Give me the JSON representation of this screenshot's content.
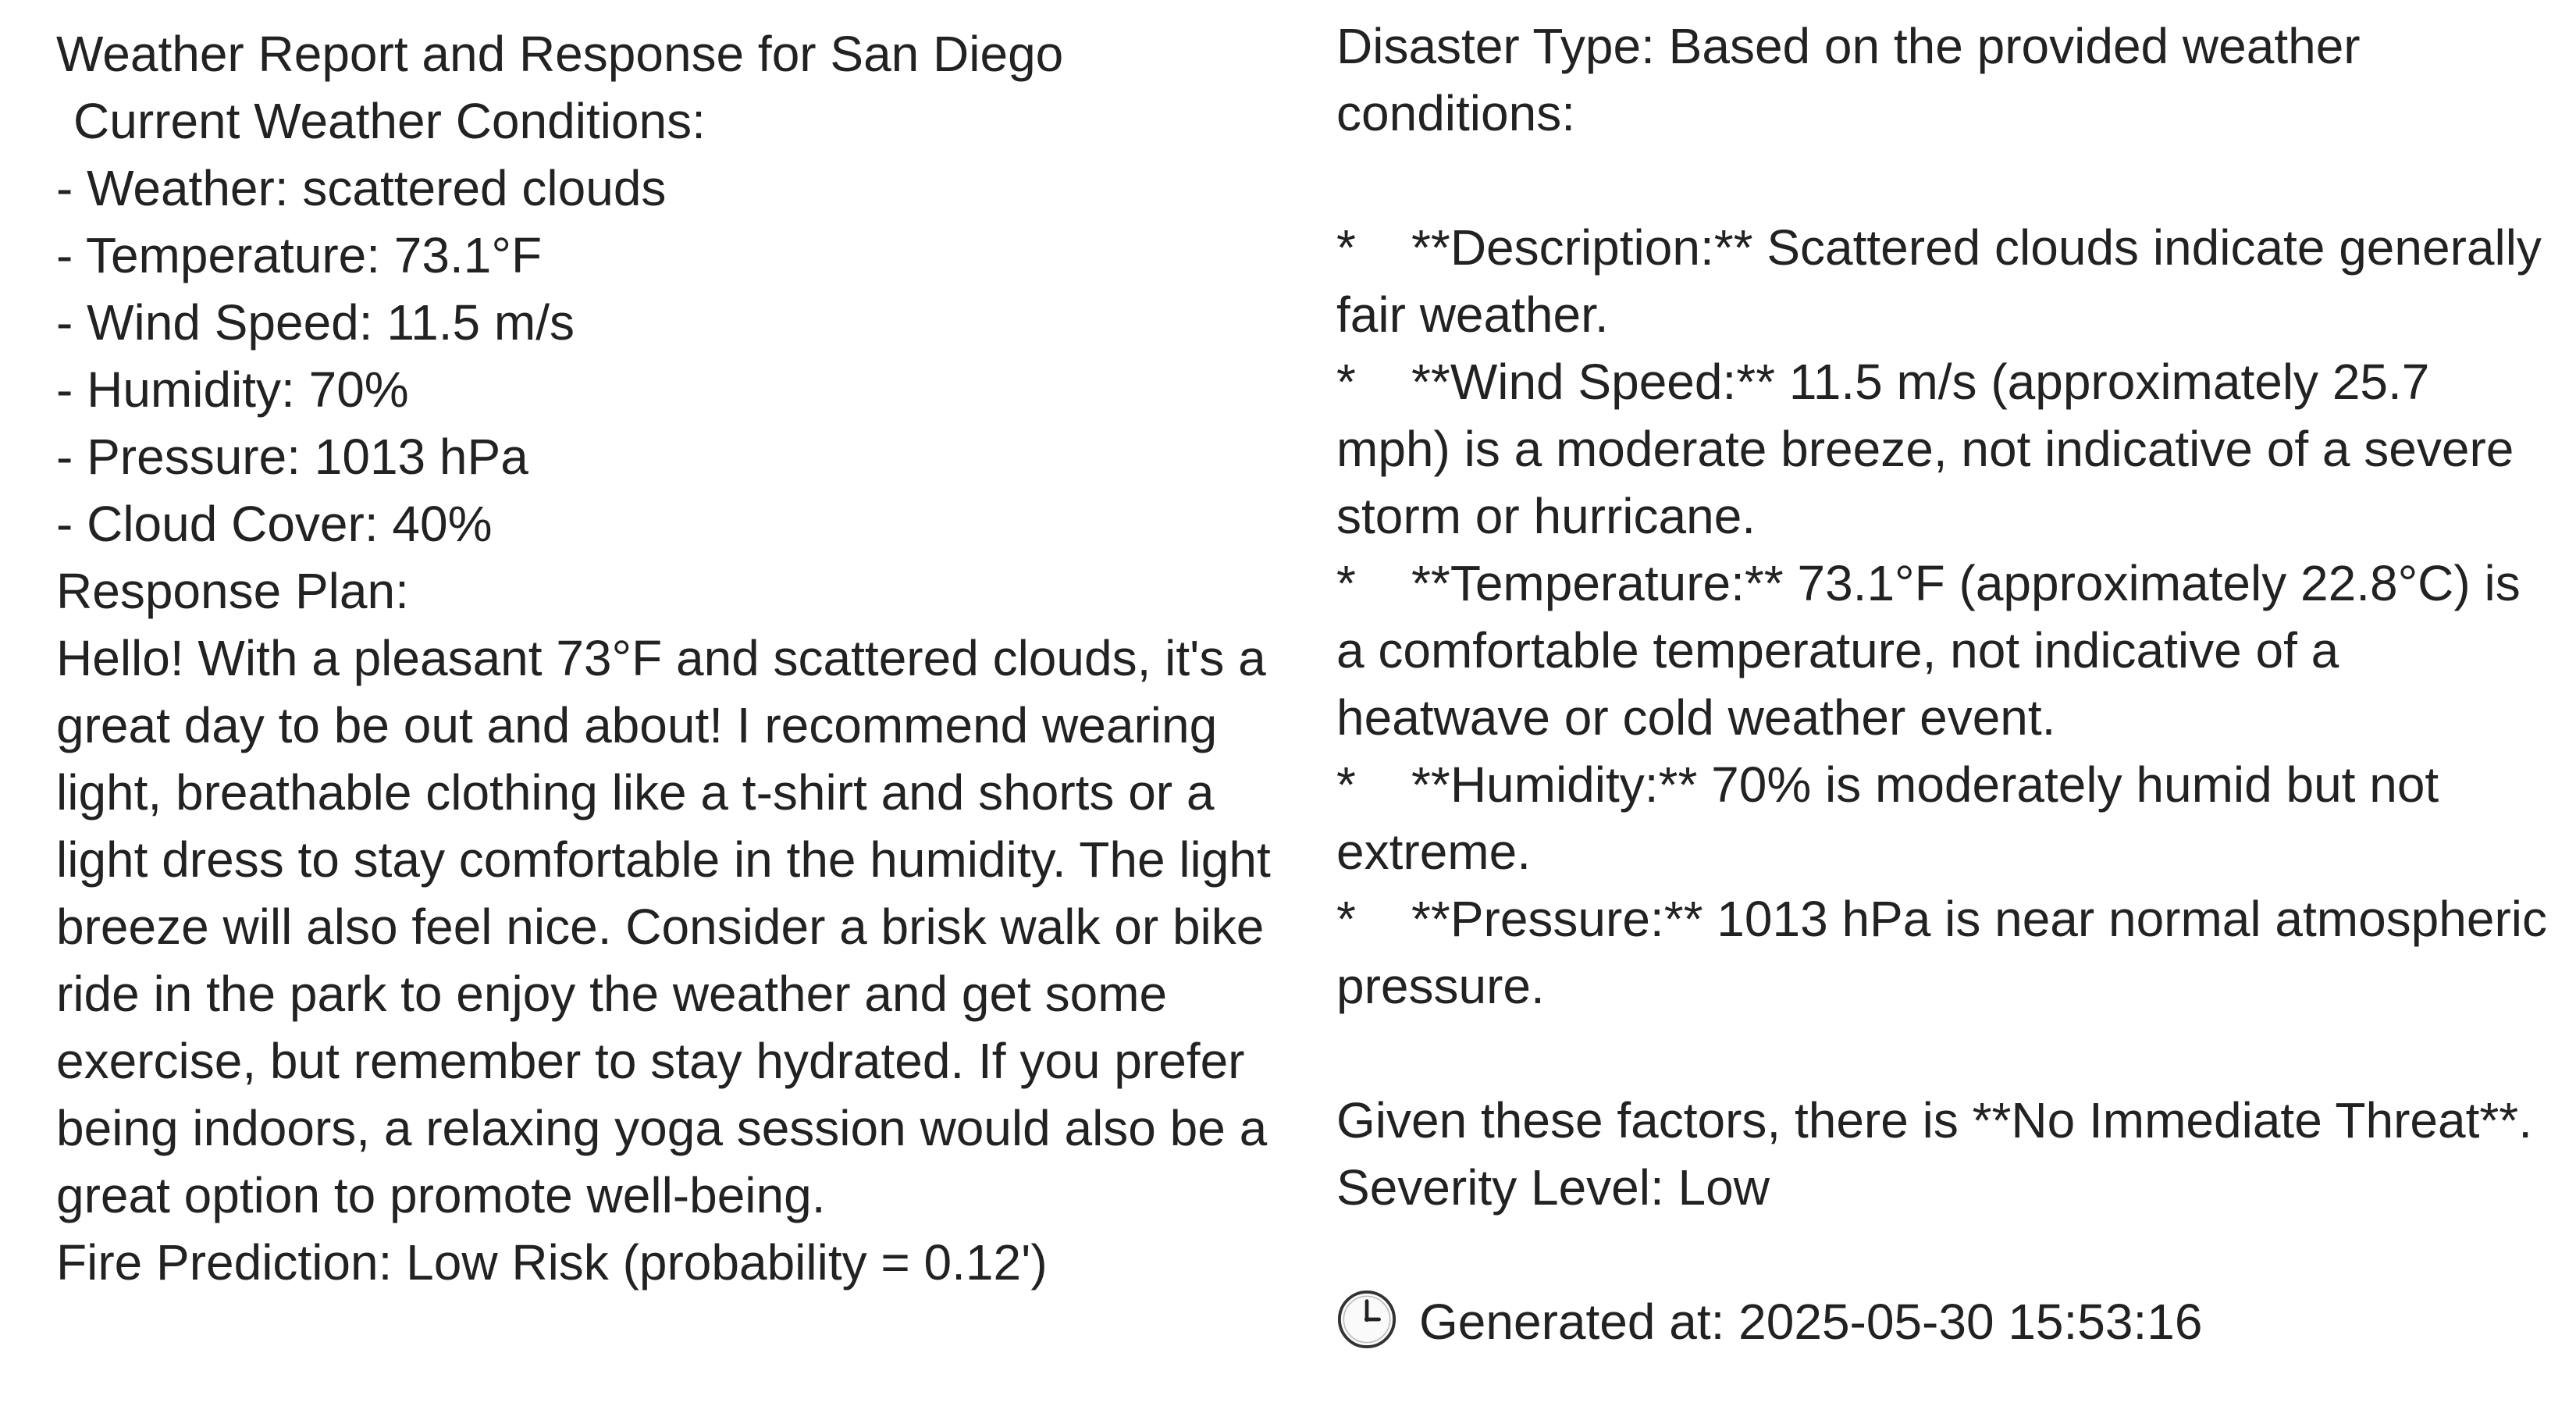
{
  "left": {
    "title": "Weather Report and Response for San Diego",
    "current_heading": "Current Weather Conditions:",
    "conditions": [
      "- Weather: scattered clouds",
      "- Temperature: 73.1°F",
      "- Wind Speed: 11.5 m/s",
      "- Humidity: 70%",
      "- Pressure: 1013 hPa",
      "- Cloud Cover: 40%"
    ],
    "response_heading": "Response Plan:",
    "response_text": "Hello! With a pleasant 73°F and scattered clouds, it's a great day to be out and about! I recommend wearing light, breathable clothing like a t-shirt and shorts or a light dress to stay comfortable in the humidity. The light breeze will also feel nice. Consider a brisk walk or bike ride in the park to enjoy the weather and get some exercise, but remember to stay hydrated. If you prefer being indoors, a relaxing yoga session would also be a great option to promote well-being.",
    "fire_prediction": "Fire Prediction: Low Risk (probability = 0.12')"
  },
  "right": {
    "disaster_intro": "Disaster Type: Based on the provided weather conditions:",
    "bullet_marker": "*",
    "bullets": [
      "**Description:** Scattered clouds indicate generally fair weather.",
      "**Wind Speed:** 11.5 m/s (approximately 25.7 mph) is a moderate breeze, not indicative of a severe storm or hurricane.",
      "**Temperature:** 73.1°F (approximately 22.8°C) is a comfortable temperature, not indicative of a heatwave or cold weather event.",
      "**Humidity:** 70% is moderately humid but not extreme.",
      "**Pressure:** 1013 hPa is near normal atmospheric pressure."
    ],
    "conclusion": "Given these factors, there is **No Immediate Threat**.",
    "severity": "Severity Level: Low",
    "generated_at": "Generated at: 2025-05-30 15:53:16",
    "clock_icon": "clock-icon"
  }
}
